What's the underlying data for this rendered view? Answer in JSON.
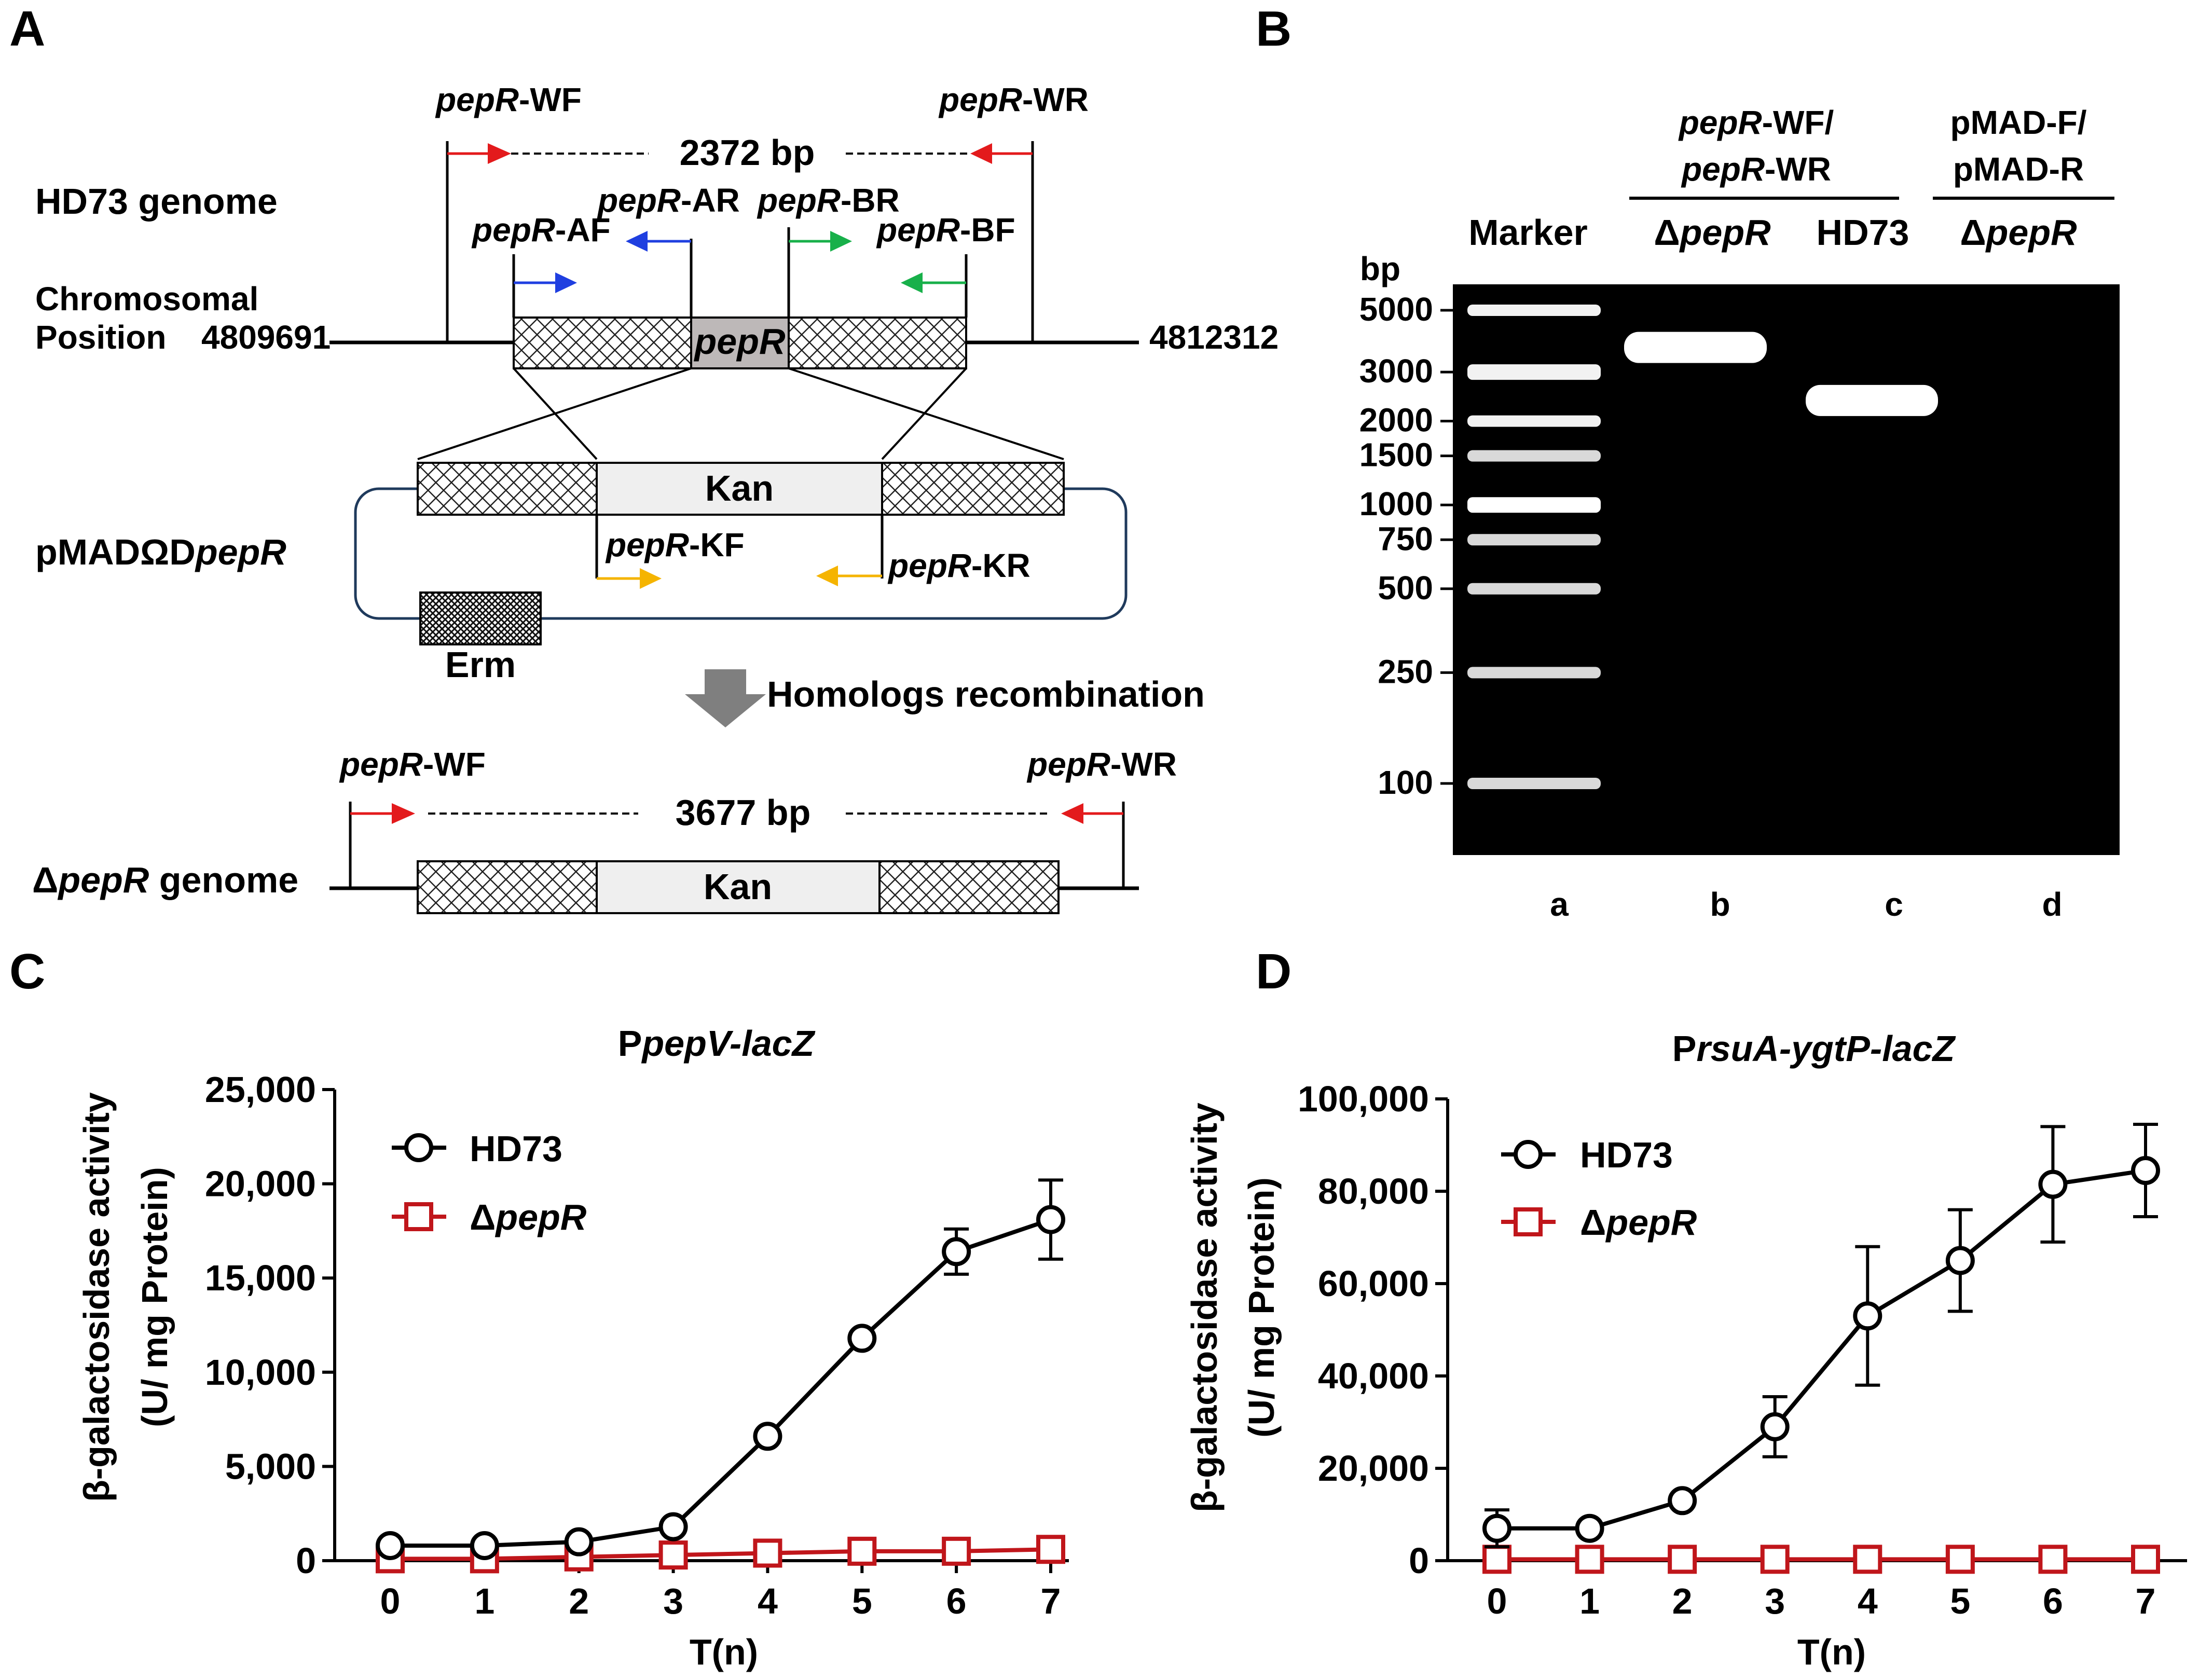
{
  "figure": {
    "panels": {
      "a": "A",
      "b": "B",
      "c": "C",
      "d": "D"
    }
  },
  "panel_a": {
    "genome_label": "HD73 genome",
    "chrom_label_1": "Chromosomal",
    "chrom_label_2": "Position",
    "pos_start": "4809691",
    "pos_end": "4812312",
    "wt_amplicon": "2372 bp",
    "gene_box": "pepR",
    "primers": {
      "wf": {
        "italic": "pepR",
        "suffix": "-WF"
      },
      "wr": {
        "italic": "pepR",
        "suffix": "-WR"
      },
      "af": {
        "italic": "pepR",
        "suffix": "-AF"
      },
      "ar": {
        "italic": "pepR",
        "suffix": "-AR"
      },
      "bf": {
        "italic": "pepR",
        "suffix": "-BF"
      },
      "br": {
        "italic": "pepR",
        "suffix": "-BR"
      },
      "kf": {
        "italic": "pepR",
        "suffix": "-KF"
      },
      "kr": {
        "italic": "pepR",
        "suffix": "-KR"
      }
    },
    "plasmid_label": {
      "prefix": "pMADΩD",
      "italic": "pepR"
    },
    "kan_label": "Kan",
    "erm_label": "Erm",
    "recombination_label": "Homologs recombination",
    "mutant_amplicon": "3677 bp",
    "mutant_genome": {
      "delta": "Δ",
      "italic": "pepR",
      "suffix": " genome"
    },
    "colors": {
      "wf": "#e31a1c",
      "wr": "#e31a1c",
      "af": "#1f3fe0",
      "ar": "#1f3fe0",
      "bf": "#18b04a",
      "br": "#18b04a",
      "kf": "#f5b400",
      "kr": "#f5b400",
      "plasmid": "#1f3a5c"
    }
  },
  "panel_b": {
    "header_group1_line1": {
      "italic": "pepR",
      "suffix": "-WF/"
    },
    "header_group1_line2": {
      "italic": "pepR",
      "suffix": "-WR"
    },
    "header_group2_line1": "pMAD-F/",
    "header_group2_line2": "pMAD-R",
    "lane_headers": [
      {
        "text": "Marker"
      },
      {
        "delta": "Δ",
        "italic": "pepR"
      },
      {
        "text": "HD73"
      },
      {
        "delta": "Δ",
        "italic": "pepR"
      }
    ],
    "unit_label": "bp",
    "ladder": [
      5000,
      3000,
      2000,
      1500,
      1000,
      750,
      500,
      250,
      100
    ],
    "ladder_labels": [
      "5000",
      "3000",
      "2000",
      "1500",
      "1000",
      "750",
      "500",
      "250",
      "100"
    ],
    "lane_letters": [
      "a",
      "b",
      "c",
      "d"
    ],
    "sample_bands": [
      {
        "lane": "b",
        "size_bp": 3677
      },
      {
        "lane": "c",
        "size_bp": 2372
      }
    ]
  },
  "chart_data": [
    {
      "type": "line",
      "panel": "C",
      "title": "PpepV-lacZ",
      "title_parts": {
        "plain": "P",
        "italic": "pepV-lacZ"
      },
      "xlabel": "T(n)",
      "ylabel_line1": "β-galactosidase activity",
      "ylabel_line2": "(U/ mg Protein)",
      "ylim": [
        0,
        25000
      ],
      "yticks": [
        0,
        5000,
        10000,
        15000,
        20000,
        25000
      ],
      "ytick_labels": [
        "0",
        "5,000",
        "10,000",
        "15,000",
        "20,000",
        "25,000"
      ],
      "x": [
        0,
        1,
        2,
        3,
        4,
        5,
        6,
        7
      ],
      "xtick_labels": [
        "0",
        "1",
        "2",
        "3",
        "4",
        "5",
        "6",
        "7"
      ],
      "legend_position": "top-left",
      "series": [
        {
          "name": "HD73",
          "legend_plain": "HD73",
          "color": "#000000",
          "marker": "circle",
          "values": [
            800,
            800,
            1000,
            1800,
            6600,
            11800,
            16400,
            18100
          ],
          "errors": [
            0,
            0,
            0,
            0,
            0,
            0,
            1200,
            2100
          ]
        },
        {
          "name": "ΔpepR",
          "legend_delta": "Δ",
          "legend_italic": "pepR",
          "color": "#c0161b",
          "marker": "square",
          "values": [
            100,
            100,
            200,
            300,
            400,
            500,
            500,
            600
          ],
          "errors": [
            0,
            0,
            0,
            0,
            0,
            0,
            0,
            0
          ]
        }
      ]
    },
    {
      "type": "line",
      "panel": "D",
      "title": "PrsuA-ygtP-lacZ",
      "title_parts": {
        "plain": "P",
        "italic": "rsuA-ygtP-lacZ"
      },
      "xlabel": "T(n)",
      "ylabel_line1": "β-galactosidase activity",
      "ylabel_line2": "(U/ mg Protein)",
      "ylim": [
        0,
        100000
      ],
      "yticks": [
        0,
        20000,
        40000,
        60000,
        80000,
        100000
      ],
      "ytick_labels": [
        "0",
        "20,000",
        "40,000",
        "60,000",
        "80,000",
        "100,000"
      ],
      "x": [
        0,
        1,
        2,
        3,
        4,
        5,
        6,
        7
      ],
      "xtick_labels": [
        "0",
        "1",
        "2",
        "3",
        "4",
        "5",
        "6",
        "7"
      ],
      "legend_position": "top-left",
      "series": [
        {
          "name": "HD73",
          "legend_plain": "HD73",
          "color": "#000000",
          "marker": "circle",
          "values": [
            7000,
            7000,
            13000,
            29000,
            53000,
            65000,
            81500,
            84500
          ],
          "errors": [
            4000,
            0,
            0,
            6500,
            15000,
            11000,
            12500,
            10000
          ]
        },
        {
          "name": "ΔpepR",
          "legend_delta": "Δ",
          "legend_italic": "pepR",
          "color": "#c0161b",
          "marker": "square",
          "values": [
            300,
            300,
            300,
            300,
            300,
            300,
            300,
            300
          ],
          "errors": [
            0,
            0,
            0,
            0,
            0,
            0,
            0,
            0
          ]
        }
      ]
    }
  ]
}
